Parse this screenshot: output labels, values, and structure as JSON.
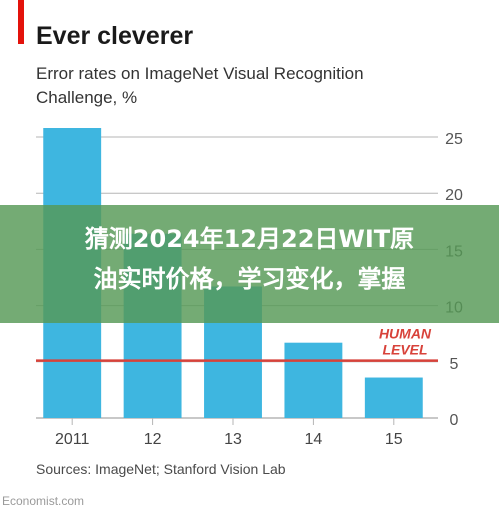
{
  "page": {
    "title": "Ever cleverer",
    "subtitle": "Error rates on ImageNet Visual Recognition Challenge, %",
    "source": "Sources: ImageNet; Stanford Vision Lab",
    "credit": "Economist.com",
    "overlay_line1": "猜测2024年12月22日WIT原",
    "overlay_line2": "油实时价格，学习变化，掌握"
  },
  "colors": {
    "bar": "#3eb6e0",
    "grid": "#b5b5b5",
    "reference_line": "#d8423a",
    "accent_tag": "#e3120b",
    "overlay": "#569856"
  },
  "chart_data": {
    "type": "bar",
    "categories": [
      "2011",
      "12",
      "13",
      "14",
      "15"
    ],
    "values": [
      25.8,
      16.4,
      11.7,
      6.7,
      3.6
    ],
    "ylim": [
      0,
      25
    ],
    "yticks": [
      0,
      5,
      10,
      15,
      20,
      25
    ],
    "y_axis_side": "right",
    "grid": "horizontal",
    "reference_line": {
      "value": 5.1,
      "label_line1": "HUMAN",
      "label_line2": "LEVEL"
    }
  }
}
